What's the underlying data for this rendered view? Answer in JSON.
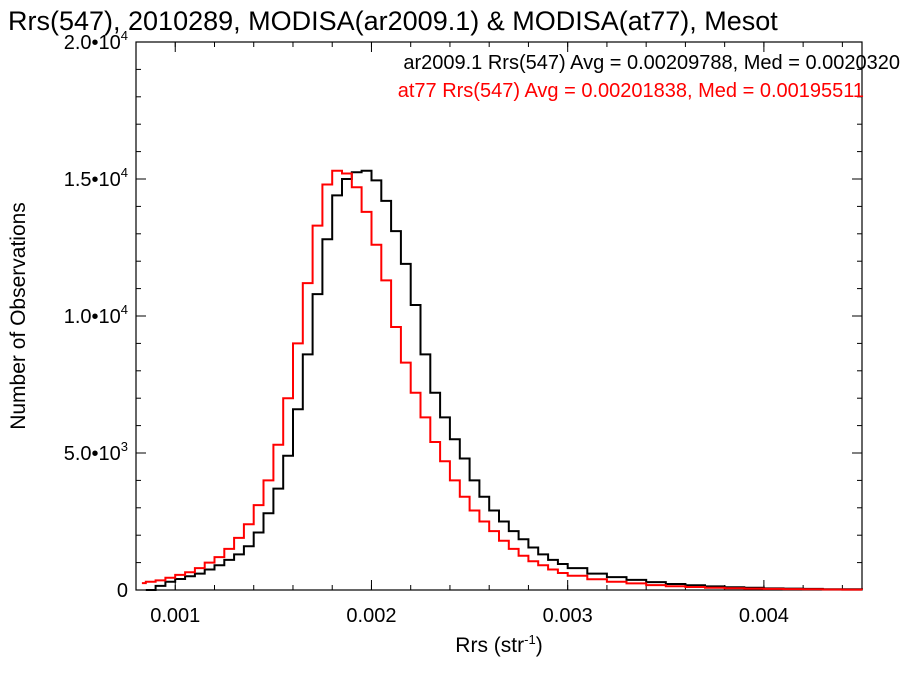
{
  "chart_data": {
    "type": "line",
    "title": "Rrs(547), 2010289, MODISA(ar2009.1) & MODISA(at77), Mesot",
    "xlabel": "Rrs (str",
    "xlabel_sup": "-1",
    "xlabel_close": ")",
    "ylabel": "Number of Observations",
    "xlim": [
      0.0008,
      0.0045
    ],
    "ylim": [
      0,
      20000
    ],
    "grid": false,
    "legend_position": "top-right",
    "x_ticks": [
      {
        "value": 0.001,
        "label": "0.001"
      },
      {
        "value": 0.002,
        "label": "0.002"
      },
      {
        "value": 0.003,
        "label": "0.003"
      },
      {
        "value": 0.004,
        "label": "0.004"
      }
    ],
    "y_ticks": [
      {
        "value": 0,
        "label": "0",
        "exp": ""
      },
      {
        "value": 5000,
        "label": "5.0•10",
        "exp": "3"
      },
      {
        "value": 10000,
        "label": "1.0•10",
        "exp": "4"
      },
      {
        "value": 15000,
        "label": "1.5•10",
        "exp": "4"
      },
      {
        "value": 20000,
        "label": "2.0•10",
        "exp": "4"
      }
    ],
    "series": [
      {
        "name": "ar2009.1",
        "color": "#000000",
        "legend_text": "ar2009.1 Rrs(547) Avg = 0.00209788, Med = 0.0020320",
        "x": [
          0.00085,
          0.0009,
          0.00095,
          0.001,
          0.00105,
          0.0011,
          0.00115,
          0.0012,
          0.00125,
          0.0013,
          0.00135,
          0.0014,
          0.00145,
          0.0015,
          0.00155,
          0.0016,
          0.00165,
          0.0017,
          0.00175,
          0.0018,
          0.00185,
          0.0019,
          0.00195,
          0.002,
          0.00205,
          0.0021,
          0.00215,
          0.0022,
          0.00225,
          0.0023,
          0.00235,
          0.0024,
          0.00245,
          0.0025,
          0.00255,
          0.0026,
          0.00265,
          0.0027,
          0.00275,
          0.0028,
          0.00285,
          0.0029,
          0.00295,
          0.003,
          0.0031,
          0.0032,
          0.0033,
          0.0034,
          0.0035,
          0.0036,
          0.0037,
          0.0038,
          0.0039,
          0.004,
          0.0041,
          0.0042,
          0.0043,
          0.0044,
          0.0045
        ],
        "y": [
          0,
          150,
          300,
          400,
          500,
          600,
          750,
          900,
          1100,
          1300,
          1600,
          2100,
          2800,
          3700,
          4900,
          6600,
          8600,
          10800,
          12800,
          14400,
          15000,
          15250,
          15300,
          14950,
          14200,
          13100,
          11900,
          10400,
          8600,
          7200,
          6300,
          5500,
          4800,
          4000,
          3400,
          2900,
          2500,
          2150,
          1850,
          1550,
          1300,
          1100,
          950,
          800,
          600,
          470,
          370,
          290,
          220,
          170,
          130,
          100,
          80,
          60,
          50,
          40,
          30,
          25,
          20
        ]
      },
      {
        "name": "at77",
        "color": "#ff0000",
        "legend_text": "at77 Rrs(547) Avg = 0.00201838, Med = 0.00195511",
        "x": [
          0.00083,
          0.00085,
          0.0009,
          0.00095,
          0.001,
          0.00105,
          0.0011,
          0.00115,
          0.0012,
          0.00125,
          0.0013,
          0.00135,
          0.0014,
          0.00145,
          0.0015,
          0.00155,
          0.0016,
          0.00165,
          0.0017,
          0.00175,
          0.0018,
          0.00185,
          0.0019,
          0.00195,
          0.002,
          0.00205,
          0.0021,
          0.00215,
          0.0022,
          0.00225,
          0.0023,
          0.00235,
          0.0024,
          0.00245,
          0.0025,
          0.00255,
          0.0026,
          0.00265,
          0.0027,
          0.00275,
          0.0028,
          0.00285,
          0.0029,
          0.00295,
          0.003,
          0.0031,
          0.0032,
          0.0033,
          0.0034,
          0.0035,
          0.0036,
          0.0037,
          0.0038,
          0.0039,
          0.004,
          0.0041,
          0.0042,
          0.0043,
          0.0044,
          0.0045
        ],
        "y": [
          250,
          300,
          350,
          450,
          550,
          650,
          800,
          1000,
          1200,
          1500,
          1900,
          2400,
          3100,
          4000,
          5300,
          7000,
          9000,
          11200,
          13300,
          14800,
          15300,
          15200,
          14700,
          13800,
          12600,
          11300,
          9600,
          8300,
          7200,
          6300,
          5400,
          4700,
          4000,
          3400,
          2900,
          2500,
          2150,
          1800,
          1500,
          1250,
          1050,
          900,
          750,
          620,
          520,
          390,
          300,
          240,
          180,
          140,
          110,
          85,
          65,
          50,
          40,
          32,
          25,
          20,
          15,
          12
        ]
      }
    ]
  }
}
